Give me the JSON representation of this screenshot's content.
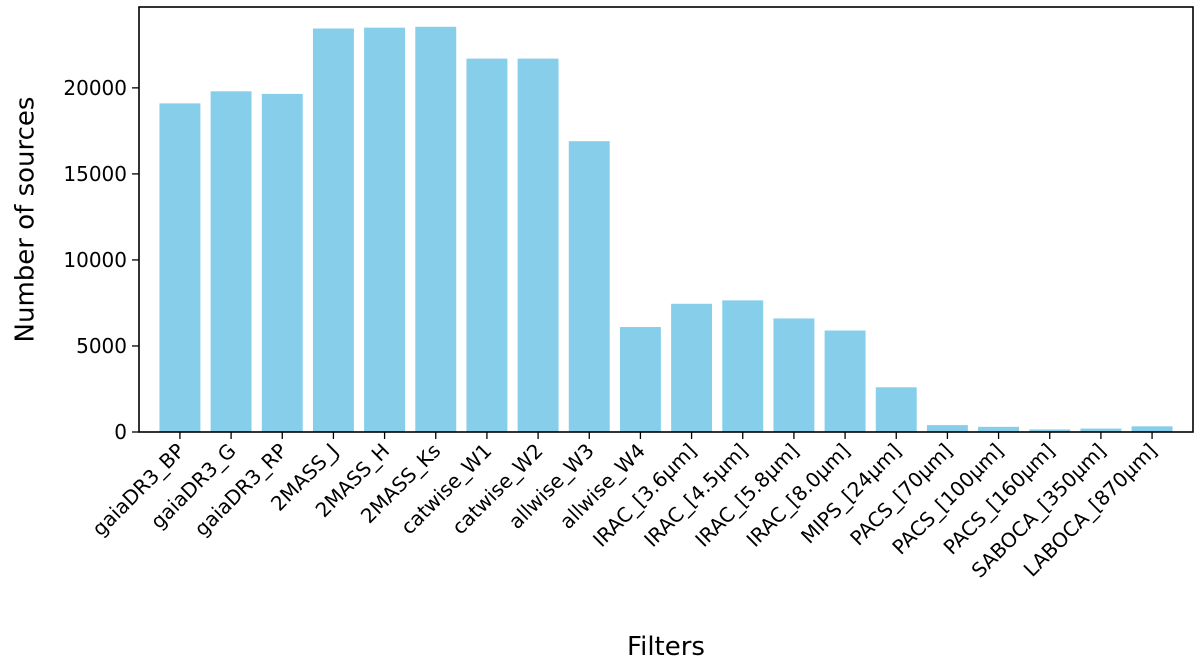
{
  "chart_data": {
    "type": "bar",
    "title": "",
    "xlabel": "Filters",
    "ylabel": "Number of sources",
    "ylim": [
      0,
      24700
    ],
    "yticks": [
      0,
      5000,
      10000,
      15000,
      20000
    ],
    "grid": false,
    "bar_color": "#87ceeb",
    "categories": [
      "gaiaDR3_BP",
      "gaiaDR3_G",
      "gaiaDR3_RP",
      "2MASS_J",
      "2MASS_H",
      "2MASS_Ks",
      "catwise_W1",
      "catwise_W2",
      "allwise_W3",
      "allwise_W4",
      "IRAC_[3.6μm]",
      "IRAC_[4.5μm]",
      "IRAC_[5.8μm]",
      "IRAC_[8.0μm]",
      "MIPS_[24μm]",
      "PACS_[70μm]",
      "PACS_[100μm]",
      "PACS_[160μm]",
      "SABOCA_[350μm]",
      "LABOCA_[870μm]"
    ],
    "values": [
      19100,
      19800,
      19650,
      23450,
      23500,
      23550,
      21700,
      21700,
      16900,
      6100,
      7450,
      7650,
      6600,
      5900,
      2600,
      400,
      300,
      150,
      200,
      330
    ]
  }
}
